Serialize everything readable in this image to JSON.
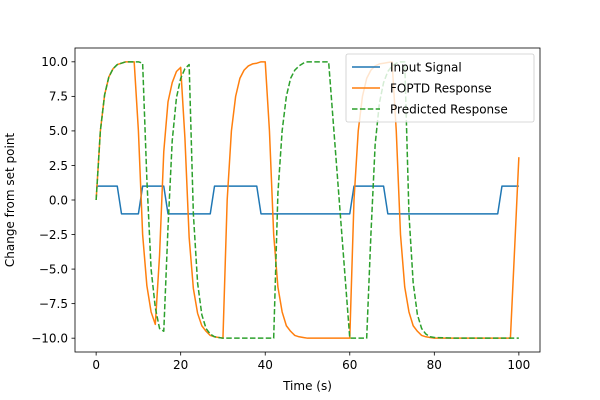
{
  "chart_data": {
    "type": "line",
    "title": "",
    "xlabel": "Time (s)",
    "ylabel": "Change from set point",
    "xlim": [
      -5,
      105
    ],
    "ylim": [
      -11,
      11
    ],
    "xticks": [
      0,
      20,
      40,
      60,
      80,
      100
    ],
    "xtick_labels": [
      "0",
      "20",
      "40",
      "60",
      "80",
      "100"
    ],
    "yticks": [
      -10.0,
      -7.5,
      -5.0,
      -2.5,
      0.0,
      2.5,
      5.0,
      7.5,
      10.0
    ],
    "ytick_labels": [
      "−10.0",
      "−7.5",
      "−5.0",
      "−2.5",
      "0.0",
      "2.5",
      "5.0",
      "7.5",
      "10.0"
    ],
    "grid": false,
    "legend_position": "top-right",
    "series": [
      {
        "name": "Input Signal",
        "color": "#1f77b4",
        "style": "solid",
        "x": [
          0,
          5,
          6,
          10,
          11,
          16,
          17,
          27,
          28,
          38,
          39,
          60,
          61,
          68,
          69,
          95,
          96,
          100
        ],
        "y": [
          1,
          1,
          -1,
          -1,
          1,
          1,
          -1,
          -1,
          1,
          1,
          -1,
          -1,
          1,
          1,
          -1,
          -1,
          1,
          1
        ]
      },
      {
        "name": "FOPTD Response",
        "color": "#ff7f0e",
        "style": "solid",
        "x": [
          0,
          1,
          2,
          3,
          4,
          5,
          6,
          7,
          8,
          9,
          10,
          11,
          12,
          13,
          14,
          15,
          16,
          17,
          18,
          19,
          20,
          21,
          22,
          23,
          24,
          25,
          26,
          27,
          28,
          29,
          30,
          31,
          32,
          33,
          34,
          35,
          36,
          37,
          38,
          39,
          40,
          41,
          42,
          43,
          44,
          45,
          46,
          47,
          48,
          49,
          50,
          55,
          60,
          61,
          62,
          63,
          64,
          65,
          66,
          67,
          68,
          69,
          70,
          71,
          72,
          73,
          74,
          75,
          76,
          77,
          78,
          79,
          80,
          85,
          90,
          95,
          96,
          97,
          98,
          99,
          100
        ],
        "y": [
          0,
          5.0,
          7.6,
          8.9,
          9.5,
          9.8,
          9.9,
          10.0,
          10.0,
          10.0,
          5.0,
          -2.5,
          -6.2,
          -8.1,
          -9.0,
          -4.0,
          3.5,
          7.1,
          8.5,
          9.3,
          9.6,
          4.5,
          -2.7,
          -6.4,
          -8.2,
          -9.1,
          -9.5,
          -9.8,
          -9.9,
          -9.95,
          -10.0,
          0.0,
          5.0,
          7.5,
          8.8,
          9.4,
          9.7,
          9.85,
          9.9,
          10.0,
          10.0,
          5.0,
          -2.5,
          -6.3,
          -8.1,
          -9.1,
          -9.5,
          -9.8,
          -9.9,
          -9.95,
          -10.0,
          -10.0,
          -10.0,
          0.0,
          5.0,
          7.5,
          8.8,
          9.4,
          9.7,
          9.85,
          9.9,
          9.95,
          10.0,
          5.0,
          -2.5,
          -6.3,
          -8.1,
          -9.1,
          -9.5,
          -9.8,
          -9.9,
          -9.95,
          -10.0,
          -10.0,
          -10.0,
          -10.0,
          -10.0,
          -10.0,
          -10.0,
          -3.5,
          3.1
        ]
      },
      {
        "name": "Predicted Response",
        "color": "#2ca02c",
        "style": "dashed",
        "x": [
          0,
          1,
          2,
          3,
          4,
          5,
          6,
          7,
          8,
          9,
          10,
          11,
          12,
          13,
          14,
          15,
          16,
          17,
          18,
          19,
          20,
          21,
          22,
          23,
          24,
          25,
          26,
          27,
          28,
          29,
          30,
          31,
          32,
          33,
          34,
          35,
          36,
          37,
          38,
          39,
          40,
          41,
          42,
          43,
          44,
          45,
          46,
          47,
          48,
          49,
          50,
          55,
          60,
          64,
          65,
          66,
          67,
          68,
          69,
          70,
          71,
          72,
          73,
          74,
          75,
          76,
          77,
          78,
          79,
          80,
          85,
          90,
          95,
          100
        ],
        "y": [
          0,
          5.0,
          7.6,
          8.9,
          9.5,
          9.8,
          9.9,
          10.0,
          10.0,
          10.0,
          10.0,
          9.9,
          1.5,
          -5.0,
          -7.8,
          -9.3,
          -9.5,
          -2.0,
          4.3,
          7.4,
          8.8,
          9.5,
          9.8,
          -1.0,
          -6.0,
          -8.3,
          -9.3,
          -9.7,
          -9.9,
          -9.95,
          -10.0,
          -10.0,
          -10.0,
          -10.0,
          -10.0,
          -10.0,
          -10.0,
          -10.0,
          -10.0,
          -10.0,
          -10.0,
          -10.0,
          -10.0,
          0.5,
          5.0,
          7.5,
          8.8,
          9.4,
          9.7,
          9.9,
          10.0,
          10.0,
          -10.0,
          -10.0,
          -2.5,
          4.0,
          7.0,
          8.5,
          9.3,
          9.7,
          9.9,
          10.0,
          10.0,
          -1.0,
          -6.0,
          -8.3,
          -9.3,
          -9.7,
          -9.9,
          -9.95,
          -10.0,
          -10.0,
          -10.0,
          -10.0
        ]
      }
    ]
  }
}
